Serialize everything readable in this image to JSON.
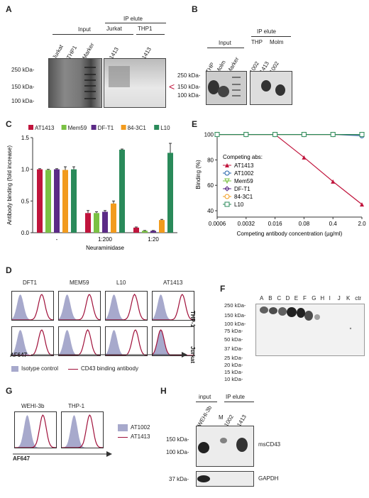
{
  "panels": {
    "A": {
      "letter": "A",
      "group_input": "Input",
      "group_ip": "IP elute",
      "lanes": [
        "Jurkat",
        "THP1",
        "Marker"
      ],
      "ip_groups": [
        "Jurkat",
        "THP1"
      ],
      "ip_lanes": [
        "1413",
        "1413"
      ],
      "markers": [
        "250 kDa-",
        "150 kDa-",
        "100 kDa-"
      ],
      "arrow": "<"
    },
    "B": {
      "letter": "B",
      "group_input": "Input",
      "group_ip": "IP elute",
      "lanes": [
        "THP",
        "Molm",
        "Marker"
      ],
      "ip_groups": [
        "THP",
        "Molm"
      ],
      "ip_lanes": [
        "1002",
        "1413",
        "1002"
      ],
      "markers": [
        "250 kDa-",
        "150 kDa-",
        "100 kDa-"
      ]
    },
    "C": {
      "letter": "C"
    },
    "D": {
      "letter": "D",
      "columns": [
        "DFT1",
        "MEM59",
        "L10",
        "AT1413"
      ],
      "rows": [
        "THP-1",
        "Jurkat"
      ],
      "xlabel": "AF647",
      "legend_isotype": "Isotype control",
      "legend_binding": "CD43 binding antibody"
    },
    "E": {
      "letter": "E"
    },
    "F": {
      "letter": "F",
      "lanes": [
        "A",
        "B",
        "C",
        "D",
        "E",
        "F",
        "G",
        "H",
        "I",
        "J",
        "K",
        "ctr"
      ],
      "markers": [
        "250 kDa-",
        "150 kDa-",
        "100 kDa-",
        "75 kDa-",
        "50 kDa-",
        "37 kDa-",
        "25 kDa-",
        "20 kDa-",
        "15 kDa-",
        "10 kDa-"
      ]
    },
    "G": {
      "letter": "G",
      "columns": [
        "WEHI-3b",
        "THP-1"
      ],
      "xlabel": "AF647",
      "legend": [
        "AT1002",
        "AT1413"
      ]
    },
    "H": {
      "letter": "H",
      "group_input": "input",
      "group_ip": "IP elute",
      "lanes": [
        "WEHI-3b",
        "M",
        "1002",
        "1413"
      ],
      "markers_top": [
        "150 kDa-",
        "100 kDa-"
      ],
      "markers_bottom": [
        "37 kDa-"
      ],
      "label_top": "msCD43",
      "label_bottom": "GAPDH"
    }
  },
  "chart_data": [
    {
      "type": "bar",
      "panel": "C",
      "ylabel": "Antibody binding (fold increase)",
      "xlabel": "Neuraminidase",
      "categories": [
        "-",
        "1:200",
        "1:20"
      ],
      "ylim": [
        0,
        1.5
      ],
      "yticks": [
        "0.0",
        "0.5",
        "1.0",
        "1.5"
      ],
      "colors": [
        "#c0143c",
        "#7ac143",
        "#5b2a86",
        "#f29b1d",
        "#2a8a5a"
      ],
      "series": [
        {
          "name": "AT1413",
          "values": [
            1.0,
            0.31,
            0.08
          ],
          "errors": [
            0.01,
            0.04,
            0.01
          ]
        },
        {
          "name": "Mem59",
          "values": [
            0.99,
            0.31,
            0.03
          ],
          "errors": [
            0.01,
            0.02,
            0.005
          ]
        },
        {
          "name": "DF-T1",
          "values": [
            1.0,
            0.33,
            0.03
          ],
          "errors": [
            0.01,
            0.02,
            0.005
          ]
        },
        {
          "name": "84-3C1",
          "values": [
            0.99,
            0.46,
            0.2
          ],
          "errors": [
            0.05,
            0.04,
            0.01
          ]
        },
        {
          "name": "L10",
          "values": [
            1.0,
            1.31,
            1.26
          ],
          "errors": [
            0.04,
            0.01,
            0.15
          ]
        }
      ]
    },
    {
      "type": "line",
      "panel": "E",
      "ylabel": "Binding (%)",
      "xlabel": "Competing antibody concentration (µg/ml)",
      "categories": [
        "0.0006",
        "0.0032",
        "0.016",
        "0.08",
        "0.4",
        "2.0"
      ],
      "ylim": [
        35,
        102
      ],
      "yticks": [
        "40",
        "60",
        "80",
        "100"
      ],
      "legend_title": "Competing abs:",
      "series": [
        {
          "name": "AT1413",
          "color": "#c0143c",
          "marker": "triangle",
          "values": [
            100,
            100,
            100,
            82,
            63,
            45
          ]
        },
        {
          "name": "AT1002",
          "color": "#1f5fa8",
          "marker": "circle",
          "values": [
            100,
            100,
            100,
            100,
            100,
            99
          ]
        },
        {
          "name": "Mem59",
          "color": "#7ac143",
          "marker": "triangle-down",
          "values": [
            100,
            100,
            100,
            100,
            100,
            100
          ]
        },
        {
          "name": "DF-T1",
          "color": "#5b2a86",
          "marker": "diamond",
          "values": [
            100,
            100,
            100,
            100,
            100,
            100
          ]
        },
        {
          "name": "84-3C1",
          "color": "#f29b1d",
          "marker": "circle",
          "values": [
            100,
            100,
            100,
            100,
            100,
            100
          ]
        },
        {
          "name": "L10",
          "color": "#2a8a5a",
          "marker": "square",
          "values": [
            100,
            100,
            100,
            100,
            100,
            100
          ]
        }
      ]
    }
  ]
}
